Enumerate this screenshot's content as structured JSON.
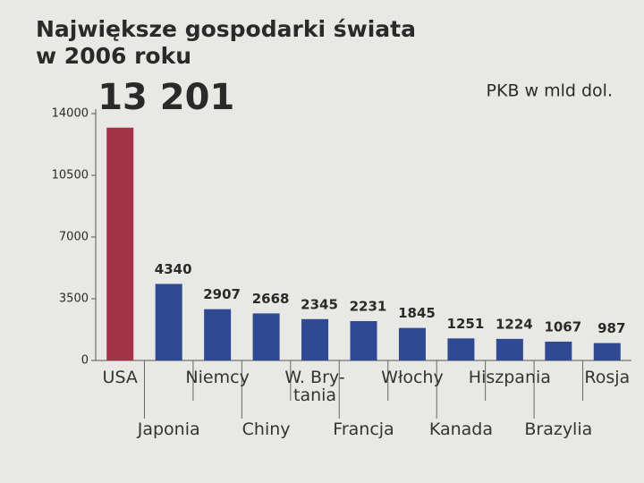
{
  "chart_data": {
    "type": "bar",
    "title": [
      "Największe gospodarki świata",
      "w 2006 roku"
    ],
    "unit_note": "PKB w mld dol.",
    "categories": [
      "USA",
      "Japonia",
      "Niemcy",
      "Chiny",
      "W. Bry-\ntania",
      "Francja",
      "Włochy",
      "Kanada",
      "Hiszpania",
      "Brazylia",
      "Rosja"
    ],
    "values": [
      13201,
      4340,
      2907,
      2668,
      2345,
      2231,
      1845,
      1251,
      1224,
      1067,
      987
    ],
    "value_labels": [
      "13 201",
      "4340",
      "2907",
      "2668",
      "2345",
      "2231",
      "1845",
      "1251",
      "1224",
      "1067",
      "987"
    ],
    "colors": [
      "#a33246",
      "#2f4a92",
      "#2f4a92",
      "#2f4a92",
      "#2f4a92",
      "#2f4a92",
      "#2f4a92",
      "#2f4a92",
      "#2f4a92",
      "#2f4a92",
      "#2f4a92"
    ],
    "ylim": [
      0,
      14000
    ],
    "yticks": [
      0,
      3500,
      7000,
      10500,
      14000
    ],
    "grid": false
  }
}
